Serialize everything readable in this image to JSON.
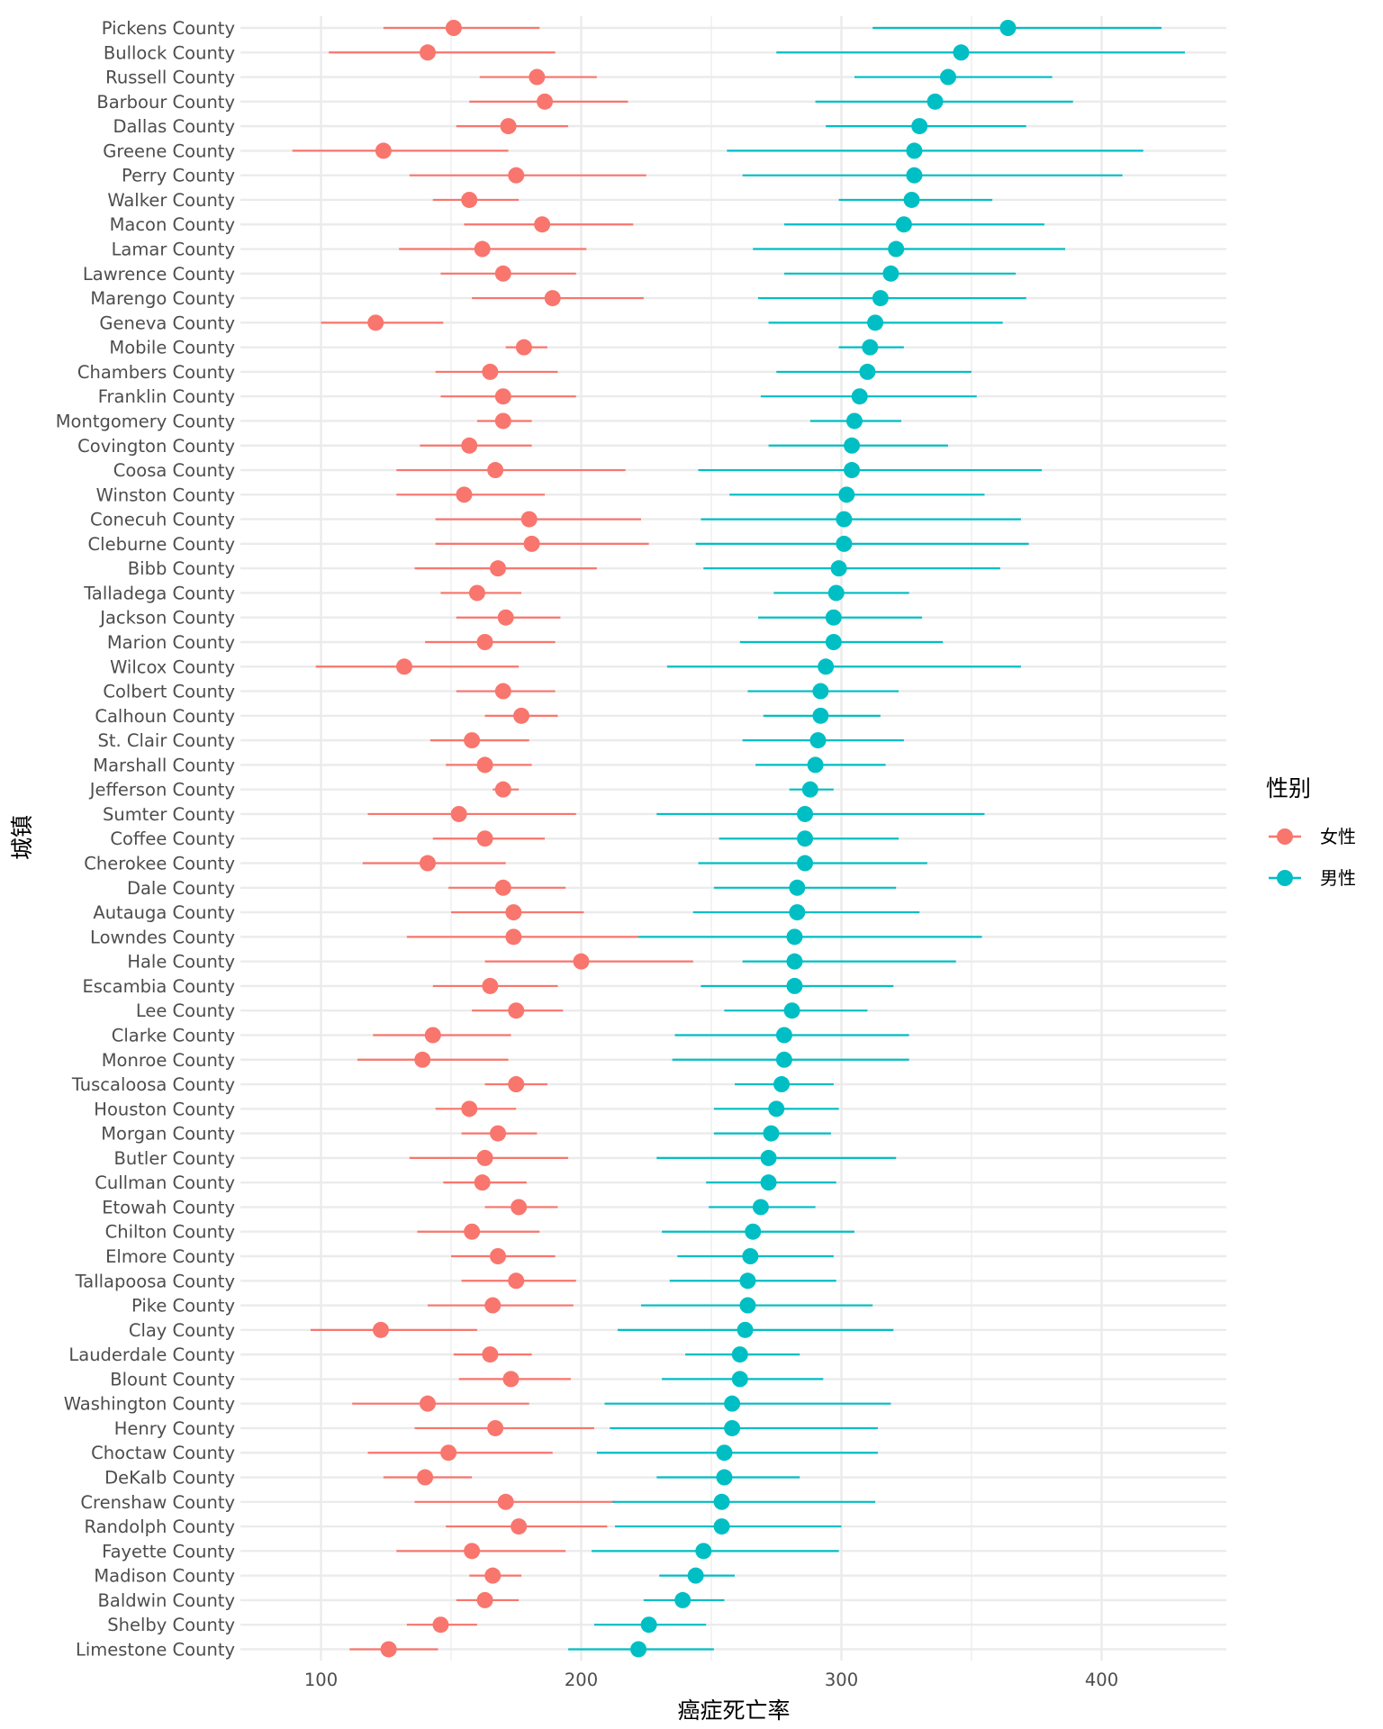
{
  "chart_data": {
    "type": "dot-interval",
    "title": "",
    "xlabel": "癌症死亡率",
    "ylabel": "城镇",
    "xlim": [
      72,
      450
    ],
    "xticks": [
      100,
      200,
      300,
      400
    ],
    "legend": {
      "title": "性别",
      "position": "right",
      "entries": [
        {
          "label": "女性",
          "color": "#F8766D"
        },
        {
          "label": "男性",
          "color": "#00BFC4"
        }
      ]
    },
    "counties": [
      "Pickens County",
      "Bullock County",
      "Russell County",
      "Barbour County",
      "Dallas County",
      "Greene County",
      "Perry County",
      "Walker County",
      "Macon County",
      "Lamar County",
      "Lawrence County",
      "Marengo County",
      "Geneva County",
      "Mobile County",
      "Chambers County",
      "Franklin County",
      "Montgomery County",
      "Covington County",
      "Coosa County",
      "Winston County",
      "Conecuh County",
      "Cleburne County",
      "Bibb County",
      "Talladega County",
      "Jackson County",
      "Marion County",
      "Wilcox County",
      "Colbert County",
      "Calhoun County",
      "St. Clair County",
      "Marshall County",
      "Jefferson County",
      "Sumter County",
      "Coffee County",
      "Cherokee County",
      "Dale County",
      "Autauga County",
      "Lowndes County",
      "Hale County",
      "Escambia County",
      "Lee County",
      "Clarke County",
      "Monroe County",
      "Tuscaloosa County",
      "Houston County",
      "Morgan County",
      "Butler County",
      "Cullman County",
      "Etowah County",
      "Chilton County",
      "Elmore County",
      "Tallapoosa County",
      "Pike County",
      "Clay County",
      "Lauderdale County",
      "Blount County",
      "Washington County",
      "Henry County",
      "Choctaw County",
      "DeKalb County",
      "Crenshaw County",
      "Randolph County",
      "Fayette County",
      "Madison County",
      "Baldwin County",
      "Shelby County",
      "Limestone County"
    ],
    "series": [
      {
        "name": "女性",
        "color": "#F8766D",
        "values": [
          151,
          141,
          183,
          186,
          172,
          124,
          175,
          157,
          185,
          162,
          170,
          189,
          121,
          178,
          165,
          170,
          170,
          157,
          167,
          155,
          180,
          181,
          168,
          160,
          171,
          163,
          132,
          170,
          177,
          158,
          163,
          170,
          153,
          163,
          141,
          170,
          174,
          174,
          200,
          165,
          175,
          143,
          139,
          175,
          157,
          168,
          163,
          162,
          176,
          158,
          168,
          175,
          166,
          123,
          165,
          173,
          141,
          167,
          149,
          140,
          171,
          176,
          158,
          166,
          163,
          146,
          126
        ],
        "lower": [
          124,
          103,
          161,
          157,
          152,
          89,
          134,
          143,
          155,
          130,
          146,
          158,
          100,
          171,
          144,
          146,
          160,
          138,
          129,
          129,
          144,
          144,
          136,
          146,
          152,
          140,
          98,
          152,
          163,
          142,
          148,
          166,
          118,
          143,
          116,
          149,
          150,
          133,
          163,
          143,
          158,
          120,
          114,
          163,
          144,
          154,
          134,
          147,
          163,
          137,
          150,
          154,
          141,
          96,
          151,
          153,
          112,
          136,
          118,
          124,
          136,
          148,
          129,
          157,
          152,
          133,
          111
        ],
        "upper": [
          184,
          190,
          206,
          218,
          195,
          172,
          225,
          176,
          220,
          202,
          198,
          224,
          147,
          187,
          191,
          198,
          181,
          181,
          217,
          186,
          223,
          226,
          206,
          177,
          192,
          190,
          176,
          190,
          191,
          180,
          181,
          176,
          198,
          186,
          171,
          194,
          201,
          222,
          243,
          191,
          193,
          173,
          172,
          187,
          175,
          183,
          195,
          179,
          191,
          184,
          190,
          198,
          197,
          160,
          181,
          196,
          180,
          205,
          189,
          158,
          213,
          210,
          194,
          177,
          176,
          160,
          145
        ]
      },
      {
        "name": "男性",
        "color": "#00BFC4",
        "values": [
          364,
          346,
          341,
          336,
          330,
          328,
          328,
          327,
          324,
          321,
          319,
          315,
          313,
          311,
          310,
          307,
          305,
          304,
          304,
          302,
          301,
          301,
          299,
          298,
          297,
          297,
          294,
          292,
          292,
          291,
          290,
          288,
          286,
          286,
          286,
          283,
          283,
          282,
          282,
          282,
          281,
          278,
          278,
          277,
          275,
          273,
          272,
          272,
          269,
          266,
          265,
          264,
          264,
          263,
          261,
          261,
          258,
          258,
          255,
          255,
          254,
          254,
          247,
          244,
          239,
          226,
          222
        ],
        "lower": [
          312,
          275,
          305,
          290,
          294,
          256,
          262,
          299,
          278,
          266,
          278,
          268,
          272,
          299,
          275,
          269,
          288,
          272,
          245,
          257,
          246,
          244,
          247,
          274,
          268,
          261,
          233,
          264,
          270,
          262,
          267,
          280,
          229,
          253,
          245,
          251,
          243,
          222,
          262,
          246,
          255,
          236,
          235,
          259,
          251,
          251,
          229,
          248,
          249,
          231,
          237,
          234,
          223,
          214,
          240,
          231,
          209,
          211,
          206,
          229,
          212,
          213,
          204,
          230,
          224,
          205,
          195
        ],
        "upper": [
          423,
          432,
          381,
          389,
          371,
          416,
          408,
          358,
          378,
          386,
          367,
          371,
          362,
          324,
          350,
          352,
          323,
          341,
          377,
          355,
          369,
          372,
          361,
          326,
          331,
          339,
          369,
          322,
          315,
          324,
          317,
          297,
          355,
          322,
          333,
          321,
          330,
          354,
          344,
          320,
          310,
          326,
          326,
          297,
          299,
          296,
          321,
          298,
          290,
          305,
          297,
          298,
          312,
          320,
          284,
          293,
          319,
          314,
          314,
          284,
          313,
          300,
          299,
          259,
          255,
          248,
          251
        ]
      }
    ]
  }
}
